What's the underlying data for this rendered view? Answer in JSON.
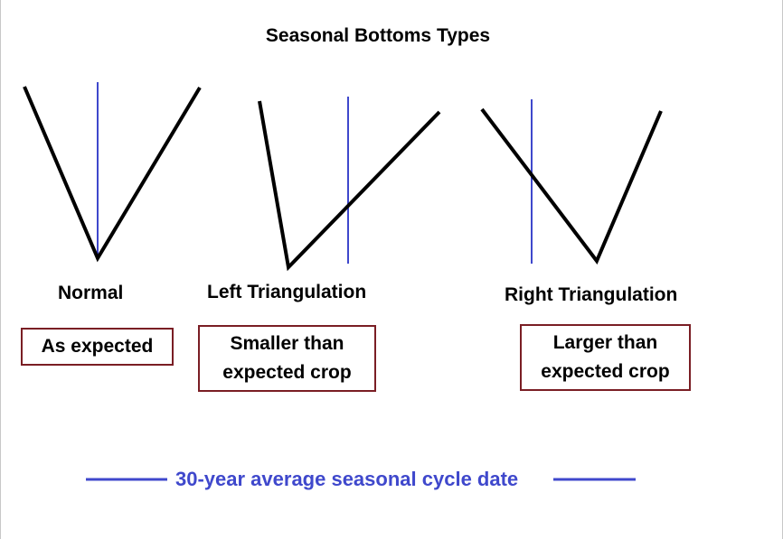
{
  "title": "Seasonal Bottoms Types",
  "colors": {
    "price_line": "#000000",
    "cycle_date_line": "#3f48cc",
    "box_border": "#7a1e24",
    "legend_text": "#3f48cc"
  },
  "types": [
    {
      "label": "Normal",
      "result_lines": [
        "As expected"
      ]
    },
    {
      "label": "Left Triangulation",
      "result_lines": [
        "Smaller than",
        "expected crop"
      ]
    },
    {
      "label": "Right Triangulation",
      "result_lines": [
        "Larger than",
        "expected crop"
      ]
    }
  ],
  "legend": {
    "text": "30-year average seasonal cycle date"
  }
}
